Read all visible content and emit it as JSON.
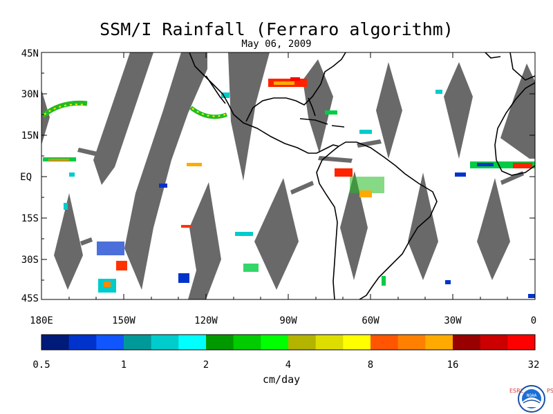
{
  "title": "SSM/I Rainfall (Ferraro algorithm)",
  "date": "May 06, 2009",
  "lat_labels": [
    "45N",
    "30N",
    "15N",
    "EQ",
    "15S",
    "30S",
    "45S"
  ],
  "lon_labels": [
    "180E",
    "150W",
    "120W",
    "90W",
    "60W",
    "30W",
    "0"
  ],
  "colorbar": {
    "colors": [
      "#001a7a",
      "#0033cc",
      "#1155ff",
      "#009999",
      "#00cccc",
      "#00ffff",
      "#009900",
      "#00cc00",
      "#00ff00",
      "#b3b300",
      "#dddd00",
      "#ffff00",
      "#ff5500",
      "#ff8000",
      "#ffaa00",
      "#990000",
      "#cc0000",
      "#ff0000"
    ],
    "tick_labels": [
      "0.5",
      "1",
      "2",
      "4",
      "8",
      "16",
      "32"
    ],
    "units": "cm/day"
  },
  "logo": {
    "left_text": "ESRL",
    "right_text": "PSD",
    "seal_text": "NOAA"
  }
}
